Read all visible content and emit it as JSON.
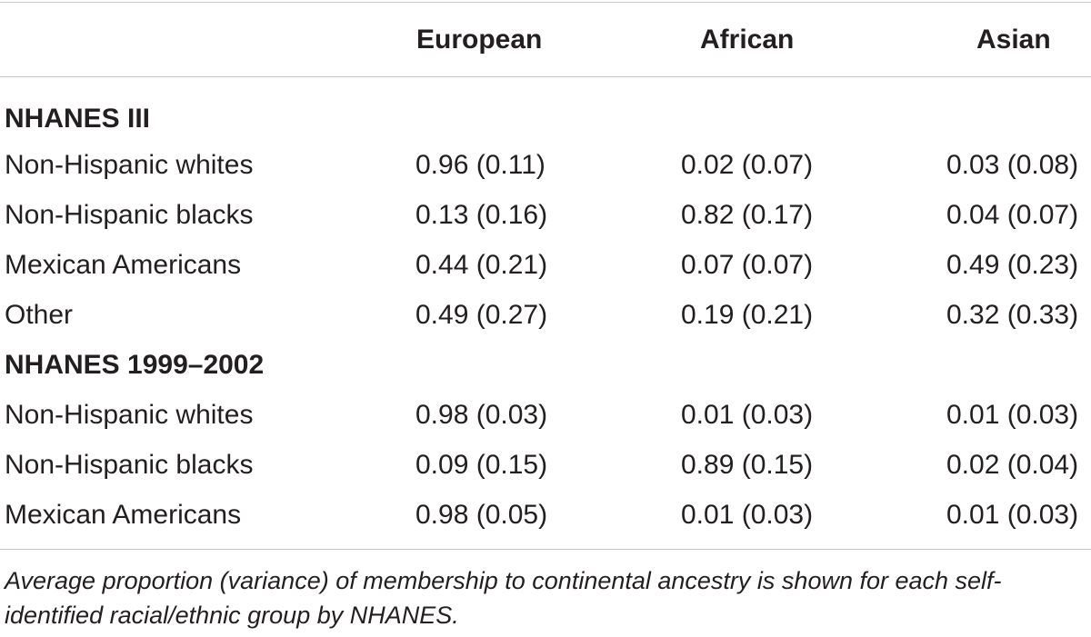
{
  "table": {
    "columns": [
      "European",
      "African",
      "Asian"
    ],
    "groups": [
      {
        "title": "NHANES III",
        "rows": [
          {
            "label": "Non-Hispanic whites",
            "values": [
              "0.96 (0.11)",
              "0.02 (0.07)",
              "0.03 (0.08)"
            ]
          },
          {
            "label": "Non-Hispanic blacks",
            "values": [
              "0.13 (0.16)",
              "0.82 (0.17)",
              "0.04 (0.07)"
            ]
          },
          {
            "label": "Mexican Americans",
            "values": [
              "0.44 (0.21)",
              "0.07 (0.07)",
              "0.49 (0.23)"
            ]
          },
          {
            "label": "Other",
            "values": [
              "0.49 (0.27)",
              "0.19 (0.21)",
              "0.32 (0.33)"
            ]
          }
        ]
      },
      {
        "title": "NHANES 1999–2002",
        "rows": [
          {
            "label": "Non-Hispanic whites",
            "values": [
              "0.98 (0.03)",
              "0.01 (0.03)",
              "0.01 (0.03)"
            ]
          },
          {
            "label": "Non-Hispanic blacks",
            "values": [
              "0.09 (0.15)",
              "0.89 (0.15)",
              "0.02 (0.04)"
            ]
          },
          {
            "label": "Mexican Americans",
            "values": [
              "0.98 (0.05)",
              "0.01 (0.03)",
              "0.01 (0.03)"
            ]
          }
        ]
      }
    ],
    "footnote": "Average proportion (variance) of membership to continental ancestry is shown for each self-identified racial/ethnic group by NHANES."
  }
}
